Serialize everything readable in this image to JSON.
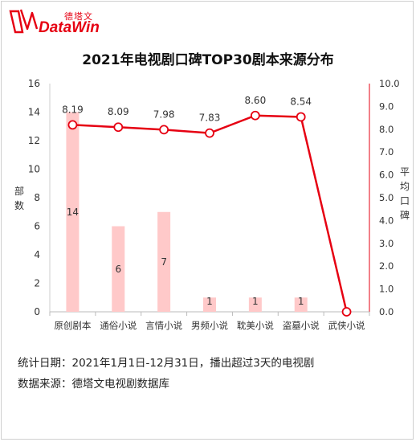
{
  "brand": {
    "name_cn": "德塔文",
    "name_en": "DataWin"
  },
  "title": "2021年电视剧口碑TOP30剧本来源分布",
  "footnotes": {
    "stats_date": "统计日期：2021年1月1日-12月31日，播出超过3天的电视剧",
    "data_source": "数据来源：德塔文电视剧数据库"
  },
  "chart_data": {
    "type": "bar+line",
    "categories": [
      "原创剧本",
      "通俗小说",
      "言情小说",
      "男频小说",
      "耽美小说",
      "盗墓小说",
      "武侠小说"
    ],
    "series": [
      {
        "type": "bar",
        "axis": "left",
        "values": [
          14,
          6,
          7,
          1,
          1,
          1,
          0
        ],
        "color": "#ffc9c9"
      },
      {
        "type": "line",
        "axis": "right",
        "values": [
          8.19,
          8.09,
          7.98,
          7.83,
          8.6,
          8.54,
          0.0
        ],
        "color": "#e60012"
      }
    ],
    "bar_labels": [
      "14",
      "6",
      "7",
      "1",
      "1",
      "1",
      ""
    ],
    "line_labels": [
      "8.19",
      "8.09",
      "7.98",
      "7.83",
      "8.60",
      "8.54",
      ""
    ],
    "left_axis": {
      "label": "部数",
      "ylim": [
        0,
        16
      ],
      "ticks": [
        "0",
        "2",
        "4",
        "6",
        "8",
        "10",
        "12",
        "14",
        "16"
      ]
    },
    "right_axis": {
      "label": "平均口碑",
      "ylim": [
        0,
        10
      ],
      "ticks": [
        "0.0",
        "1.0",
        "2.0",
        "3.0",
        "4.0",
        "5.0",
        "6.0",
        "7.0",
        "8.0",
        "9.0",
        "10.0"
      ]
    },
    "grid": false
  }
}
